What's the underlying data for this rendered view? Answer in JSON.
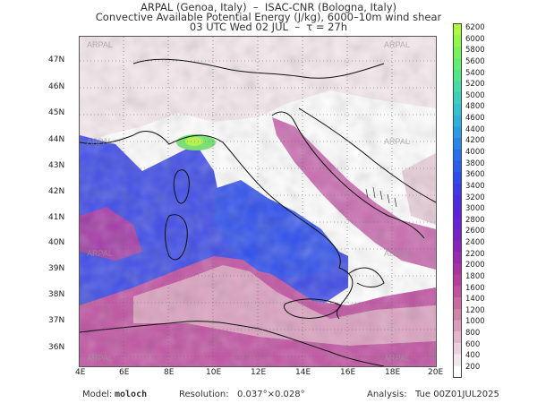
{
  "header": {
    "line1": "ARPAL (Genoa, Italy)  –  ISAC-CNR (Bologna, Italy)",
    "line2": "Convective Available Potential Energy (J/kg), 6000–10m wind shear",
    "line3": "03 UTC Wed 02 JUL  –  τ = 27h"
  },
  "map": {
    "watermark": "ARPAL",
    "lat_labels": [
      "47N",
      "46N",
      "45N",
      "44N",
      "43N",
      "42N",
      "41N",
      "40N",
      "39N",
      "38N",
      "37N",
      "36N"
    ],
    "lon_labels": [
      "4E",
      "6E",
      "8E",
      "10E",
      "12E",
      "14E",
      "16E",
      "18E",
      "20E"
    ]
  },
  "colorbar": {
    "labels": [
      "6200",
      "6000",
      "5800",
      "5600",
      "5400",
      "5200",
      "5000",
      "4800",
      "4600",
      "4400",
      "4200",
      "4000",
      "3800",
      "3600",
      "3400",
      "3200",
      "3000",
      "2800",
      "2600",
      "2400",
      "2200",
      "2000",
      "1800",
      "1600",
      "1400",
      "1200",
      "1000",
      "800",
      "600",
      "400",
      "200"
    ],
    "colors": [
      "#ffffff",
      "#f2e6ec",
      "#ead0dc",
      "#e2b6c8",
      "#da9cb6",
      "#d282a6",
      "#cb6aa0",
      "#c3529e",
      "#b83e9e",
      "#aa30a6",
      "#9a28b0",
      "#8a22bc",
      "#7a20c8",
      "#6a20d4",
      "#5a24de",
      "#4a2ce6",
      "#3c38ec",
      "#3048f0",
      "#2a5cf0",
      "#2670ee",
      "#2686ea",
      "#289ce4",
      "#2cb0dc",
      "#32c2d0",
      "#3ad0bc",
      "#44dca4",
      "#52e68a",
      "#62ee70",
      "#78f45a",
      "#90f848",
      "#aefa3c"
    ]
  },
  "footer": {
    "model_label": "Model:",
    "model_value": "moloch",
    "resolution_label": "Resolution:",
    "resolution_value": "0.037°×0.028°",
    "analysis_label": "Analysis:",
    "analysis_value": "Tue 00Z01JUL2025"
  }
}
